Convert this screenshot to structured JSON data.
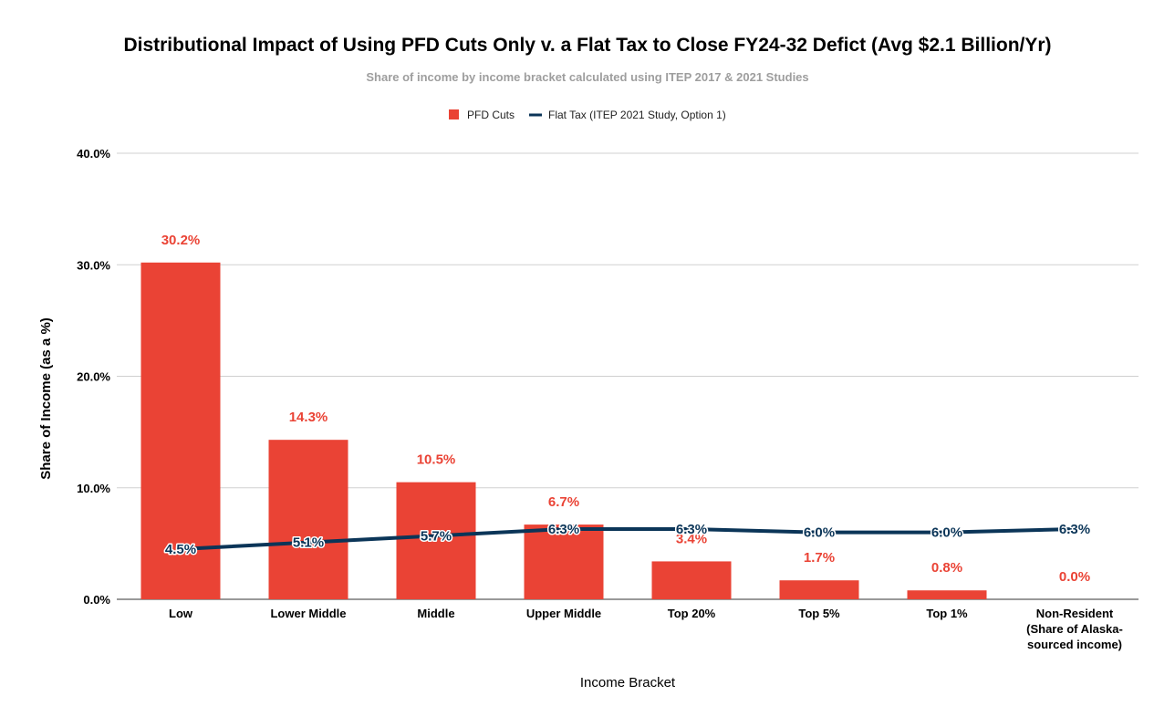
{
  "chart_data": {
    "type": "bar",
    "title": "Distributional Impact of Using PFD Cuts Only v. a Flat Tax to Close FY24-32 Defict (Avg $2.1 Billion/Yr)",
    "subtitle": "Share of income by income bracket calculated using ITEP 2017 & 2021 Studies",
    "xlabel": "Income Bracket",
    "ylabel": "Share of Income (as a %)",
    "ylim": [
      0,
      40
    ],
    "yticks": [
      "0.0%",
      "10.0%",
      "20.0%",
      "30.0%",
      "40.0%"
    ],
    "grid": true,
    "legend_position": "top",
    "categories": [
      [
        "Low"
      ],
      [
        "Lower Middle"
      ],
      [
        "Middle"
      ],
      [
        "Upper Middle"
      ],
      [
        "Top 20%"
      ],
      [
        "Top 5%"
      ],
      [
        "Top 1%"
      ],
      [
        "Non-Resident",
        "(Share of Alaska-",
        "sourced income)"
      ]
    ],
    "series": [
      {
        "name": "PFD Cuts",
        "kind": "bar",
        "color": "#ea4335",
        "values": [
          30.2,
          14.3,
          10.5,
          6.7,
          3.4,
          1.7,
          0.8,
          0.0
        ],
        "labels": [
          "30.2%",
          "14.3%",
          "10.5%",
          "6.7%",
          "3.4%",
          "1.7%",
          "0.8%",
          "0.0%"
        ]
      },
      {
        "name": "Flat Tax (ITEP 2021 Study, Option 1)",
        "kind": "line",
        "color": "#0b3558",
        "values": [
          4.5,
          5.1,
          5.7,
          6.3,
          6.3,
          6.0,
          6.0,
          6.3
        ],
        "labels": [
          "4.5%",
          "5.1%",
          "5.7%",
          "6.3%",
          "6.3%",
          "6.0%",
          "6.0%",
          "6.3%"
        ]
      }
    ]
  }
}
